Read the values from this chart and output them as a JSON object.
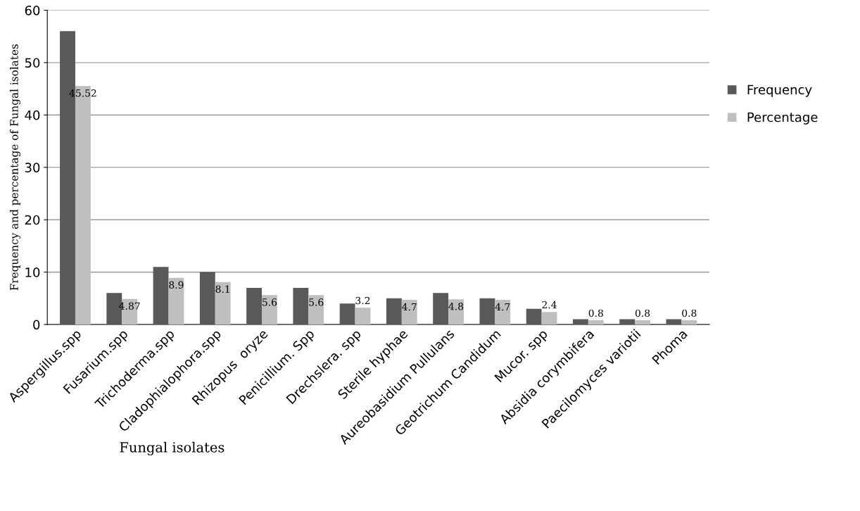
{
  "chart_data": {
    "type": "bar",
    "xlabel": "Fungal isolates",
    "ylabel": "Frequency and percentage of Fungal isolates",
    "categories": [
      "Aspergillus.spp",
      "Fusarium.spp",
      "Trichoderma.spp",
      "Cladophialophora.spp",
      "Rhizopus  oryze",
      "Penicillium. Spp",
      "Drechslera. spp",
      "Sterile hyphae",
      "Aureobasidium Pullulans",
      "Geotrichum Candidum",
      "Mucor. spp",
      "Absidia corymbifera",
      "Paecilomyces variotii",
      "Phoma"
    ],
    "series": [
      {
        "name": "Frequency",
        "color": "#595959",
        "values": [
          56,
          6,
          11,
          10,
          7,
          7,
          4,
          5,
          6,
          5,
          3,
          1,
          1,
          1
        ]
      },
      {
        "name": "Percentage",
        "color": "#bfbfbf",
        "values": [
          45.52,
          4.87,
          8.9,
          8.1,
          5.6,
          5.6,
          3.2,
          4.7,
          4.8,
          4.7,
          2.4,
          0.8,
          0.8,
          0.8
        ],
        "value_labels": [
          "45.52",
          "4.87",
          "8.9",
          "8.1",
          "5.6",
          "5.6",
          "3.2",
          "4.7",
          "4.8",
          "4.7",
          "2.4",
          "0.8",
          "0.8",
          "0.8"
        ]
      }
    ],
    "ylim": [
      0,
      60
    ],
    "yticks": [
      0,
      10,
      20,
      30,
      40,
      50,
      60
    ],
    "grid": "y",
    "legend": "right"
  }
}
